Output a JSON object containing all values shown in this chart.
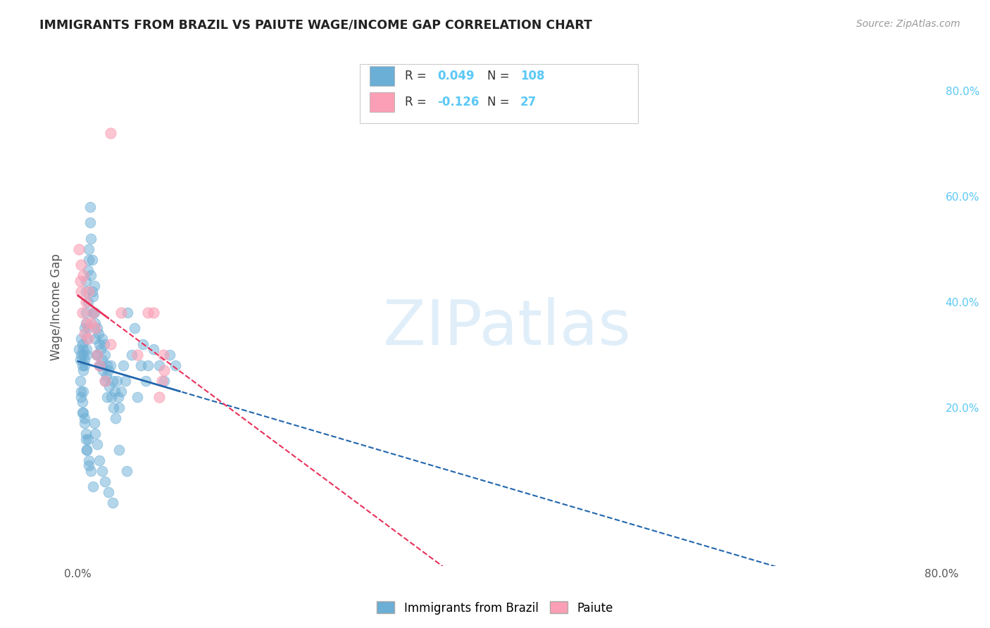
{
  "title": "IMMIGRANTS FROM BRAZIL VS PAIUTE WAGE/INCOME GAP CORRELATION CHART",
  "source": "Source: ZipAtlas.com",
  "ylabel": "Wage/Income Gap",
  "xlim": [
    -0.005,
    0.8
  ],
  "ylim": [
    -0.1,
    0.88
  ],
  "y_ticks": [
    0.2,
    0.4,
    0.6,
    0.8
  ],
  "y_tick_labels": [
    "20.0%",
    "40.0%",
    "60.0%",
    "80.0%"
  ],
  "legend_label1": "Immigrants from Brazil",
  "legend_label2": "Paiute",
  "r1": 0.049,
  "n1": 108,
  "r2": -0.126,
  "n2": 27,
  "blue_color": "#6baed6",
  "pink_color": "#fa9fb5",
  "blue_line_color": "#2166ac",
  "pink_line_color": "#e8305a",
  "background": "#ffffff",
  "grid_color": "#cccccc",
  "brazil_x": [
    0.001,
    0.002,
    0.003,
    0.003,
    0.004,
    0.004,
    0.005,
    0.005,
    0.005,
    0.006,
    0.006,
    0.006,
    0.007,
    0.007,
    0.007,
    0.007,
    0.008,
    0.008,
    0.008,
    0.009,
    0.009,
    0.009,
    0.01,
    0.01,
    0.011,
    0.011,
    0.012,
    0.012,
    0.013,
    0.013,
    0.014,
    0.014,
    0.015,
    0.015,
    0.016,
    0.016,
    0.017,
    0.018,
    0.018,
    0.019,
    0.02,
    0.02,
    0.021,
    0.021,
    0.022,
    0.022,
    0.023,
    0.024,
    0.025,
    0.025,
    0.026,
    0.027,
    0.027,
    0.028,
    0.029,
    0.03,
    0.031,
    0.032,
    0.033,
    0.034,
    0.035,
    0.036,
    0.037,
    0.038,
    0.04,
    0.042,
    0.044,
    0.046,
    0.05,
    0.052,
    0.055,
    0.058,
    0.06,
    0.063,
    0.065,
    0.07,
    0.075,
    0.08,
    0.085,
    0.09,
    0.003,
    0.004,
    0.005,
    0.006,
    0.007,
    0.008,
    0.009,
    0.01,
    0.012,
    0.014,
    0.015,
    0.016,
    0.018,
    0.02,
    0.022,
    0.025,
    0.028,
    0.032,
    0.038,
    0.045,
    0.002,
    0.003,
    0.004,
    0.005,
    0.006,
    0.007,
    0.008,
    0.01
  ],
  "brazil_y": [
    0.31,
    0.29,
    0.3,
    0.33,
    0.28,
    0.32,
    0.3,
    0.27,
    0.31,
    0.35,
    0.29,
    0.28,
    0.42,
    0.38,
    0.36,
    0.44,
    0.31,
    0.33,
    0.3,
    0.46,
    0.4,
    0.35,
    0.5,
    0.48,
    0.55,
    0.58,
    0.45,
    0.52,
    0.48,
    0.42,
    0.41,
    0.38,
    0.43,
    0.38,
    0.36,
    0.33,
    0.3,
    0.35,
    0.3,
    0.34,
    0.28,
    0.32,
    0.31,
    0.28,
    0.33,
    0.29,
    0.27,
    0.32,
    0.25,
    0.3,
    0.26,
    0.28,
    0.22,
    0.27,
    0.24,
    0.28,
    0.22,
    0.25,
    0.2,
    0.23,
    0.18,
    0.25,
    0.22,
    0.2,
    0.23,
    0.28,
    0.25,
    0.38,
    0.3,
    0.35,
    0.22,
    0.28,
    0.32,
    0.25,
    0.28,
    0.31,
    0.28,
    0.25,
    0.3,
    0.28,
    0.22,
    0.19,
    0.23,
    0.18,
    0.15,
    0.12,
    0.14,
    0.1,
    0.08,
    0.05,
    0.17,
    0.15,
    0.13,
    0.1,
    0.08,
    0.06,
    0.04,
    0.02,
    0.12,
    0.08,
    0.25,
    0.23,
    0.21,
    0.19,
    0.17,
    0.14,
    0.12,
    0.09
  ],
  "paiute_x": [
    0.001,
    0.002,
    0.003,
    0.003,
    0.004,
    0.03,
    0.005,
    0.006,
    0.007,
    0.008,
    0.009,
    0.01,
    0.012,
    0.014,
    0.016,
    0.018,
    0.02,
    0.025,
    0.03,
    0.04,
    0.055,
    0.065,
    0.07,
    0.075,
    0.078,
    0.079,
    0.08
  ],
  "paiute_y": [
    0.5,
    0.44,
    0.47,
    0.42,
    0.38,
    0.72,
    0.45,
    0.34,
    0.4,
    0.36,
    0.33,
    0.42,
    0.36,
    0.38,
    0.35,
    0.3,
    0.28,
    0.25,
    0.32,
    0.38,
    0.3,
    0.38,
    0.38,
    0.22,
    0.25,
    0.3,
    0.27
  ]
}
